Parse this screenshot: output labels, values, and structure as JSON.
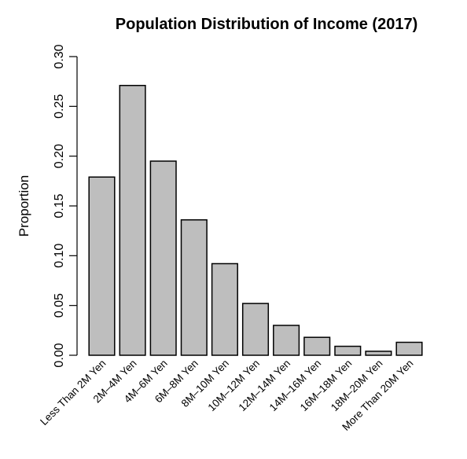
{
  "chart_data": {
    "type": "bar",
    "title": "Population Distribution of Income (2017)",
    "xlabel": "",
    "ylabel": "Proportion",
    "ylim": [
      0,
      0.3
    ],
    "yticks": [
      "0.00",
      "0.05",
      "0.10",
      "0.15",
      "0.20",
      "0.25",
      "0.30"
    ],
    "categories": [
      "Less Than 2M Yen",
      "2M–4M Yen",
      "4M–6M Yen",
      "6M–8M Yen",
      "8M–10M Yen",
      "10M–12M Yen",
      "12M–14M Yen",
      "14M–16M Yen",
      "16M–18M Yen",
      "18M–20M Yen",
      "More Than 20M Yen"
    ],
    "values": [
      0.179,
      0.271,
      0.195,
      0.136,
      0.092,
      0.052,
      0.03,
      0.018,
      0.009,
      0.004,
      0.013
    ],
    "bar_color": "#bebebe",
    "grid": false
  }
}
